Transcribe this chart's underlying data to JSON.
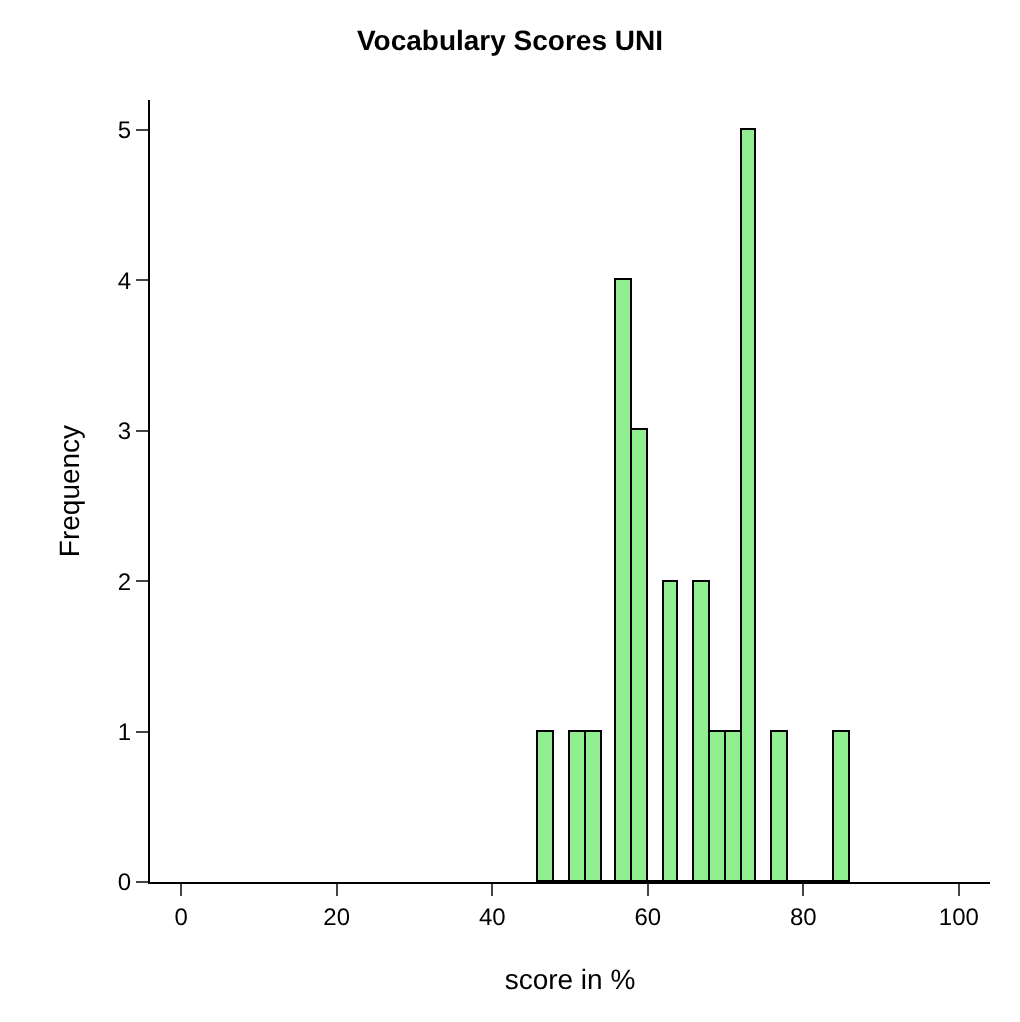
{
  "chart_data": {
    "type": "histogram",
    "title": "Vocabulary Scores UNI",
    "xlabel": "score in %",
    "ylabel": "Frequency",
    "bins": [
      46,
      48,
      50,
      52,
      54,
      56,
      58,
      60,
      62,
      64,
      66,
      68,
      70,
      72,
      74,
      76,
      78,
      80,
      82,
      84,
      86
    ],
    "values": [
      1,
      0,
      1,
      1,
      0,
      4,
      3,
      0,
      2,
      0,
      2,
      1,
      1,
      5,
      0,
      1,
      0,
      0,
      0,
      1
    ],
    "color": "#90ee90",
    "xlim": [
      -4,
      104
    ],
    "xticks": [
      0,
      20,
      40,
      60,
      80,
      100
    ],
    "ylim": [
      0,
      5.2
    ],
    "yticks": [
      0,
      1,
      2,
      3,
      4,
      5
    ]
  }
}
